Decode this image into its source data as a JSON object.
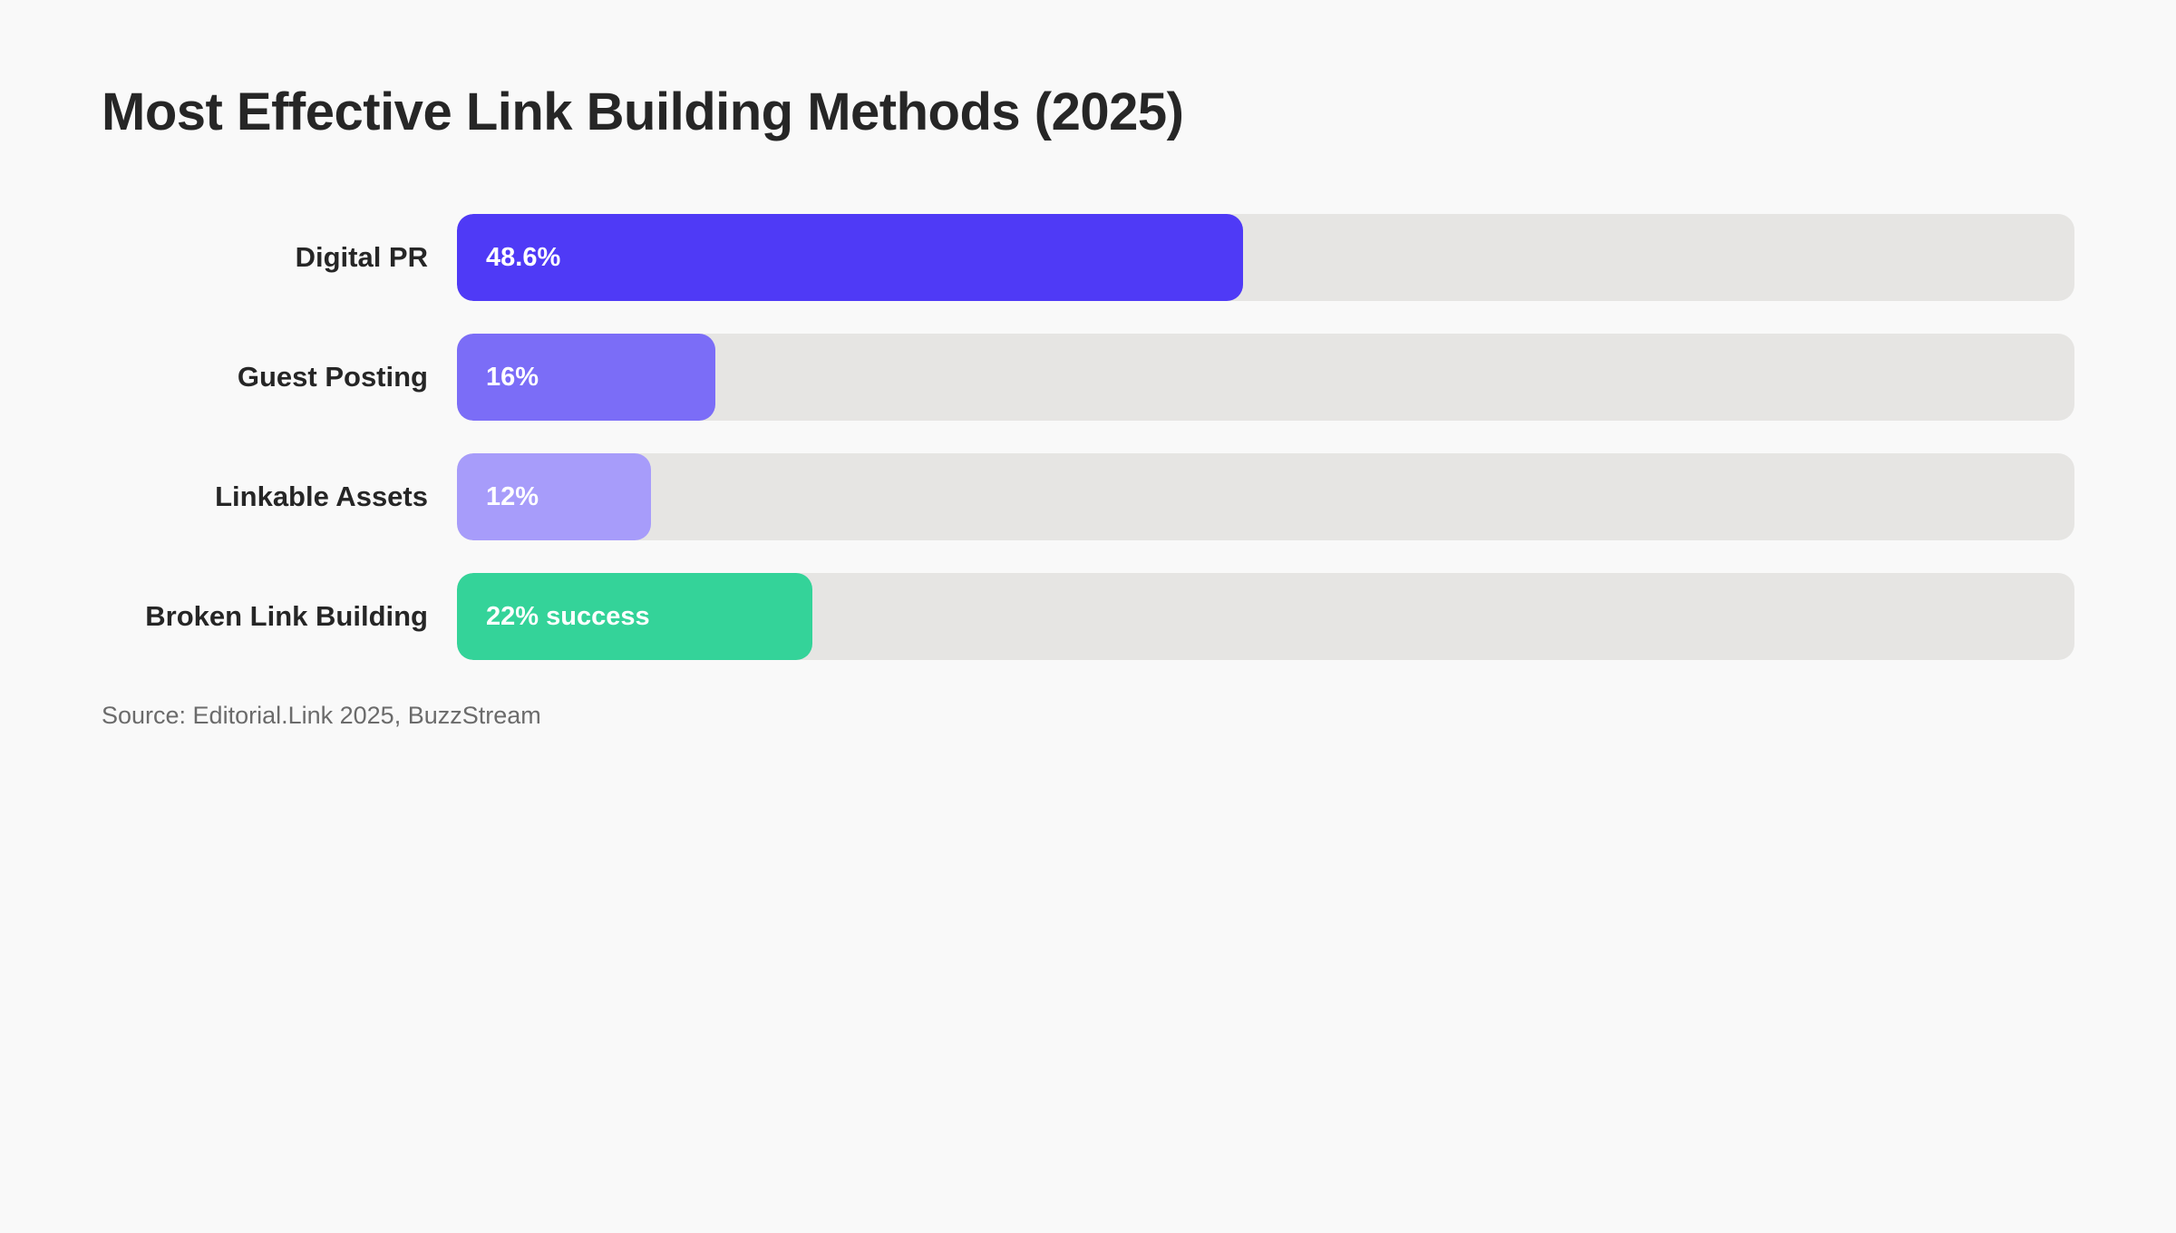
{
  "chart_data": {
    "type": "bar",
    "orientation": "horizontal",
    "title": "Most Effective Link Building Methods (2025)",
    "categories": [
      "Digital PR",
      "Guest Posting",
      "Linkable Assets",
      "Broken Link Building"
    ],
    "values": [
      48.6,
      16,
      12,
      22
    ],
    "value_labels": [
      "48.6%",
      "16%",
      "12%",
      "22% success"
    ],
    "colors": [
      "#4f3af6",
      "#7b6df7",
      "#a79cfa",
      "#34d399"
    ],
    "track_color": "#e6e5e3",
    "xlim": [
      0,
      100
    ],
    "xlabel": "",
    "ylabel": "",
    "grid": false,
    "legend": "none",
    "source": "Source: Editorial.Link 2025, BuzzStream"
  }
}
